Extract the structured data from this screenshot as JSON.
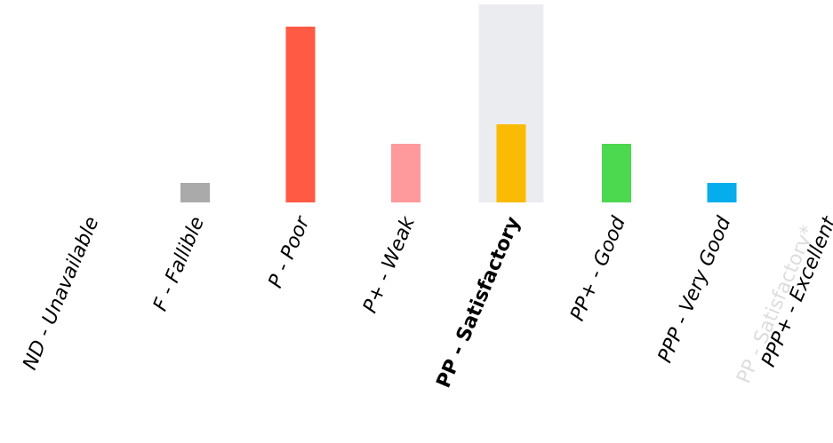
{
  "chart_data": {
    "type": "bar",
    "categories": [
      "ND - Unavailable",
      "F - Fallible",
      "P - Poor",
      "P+ - Weak",
      "PP - Satisfactory",
      "PP+ - Good",
      "PPP - Very Good",
      "PPP+ - Excellent"
    ],
    "values": [
      0,
      1,
      9,
      3,
      4,
      3,
      1,
      0
    ],
    "colors": [
      "#aaaaaa",
      "#aaaaaa",
      "#ff5a43",
      "#ff9a9c",
      "#fbbb05",
      "#4cd84f",
      "#05aded",
      "#aaaaaa"
    ],
    "highlight_index": 4,
    "highlight_color": "#ebecef",
    "ghost_label": "PP - Satisfactory*",
    "ghost_label_color": "#dddddd",
    "ylim": [
      0,
      10
    ],
    "grid": false,
    "legend": "none",
    "title": "",
    "xlabel": "",
    "ylabel": ""
  }
}
